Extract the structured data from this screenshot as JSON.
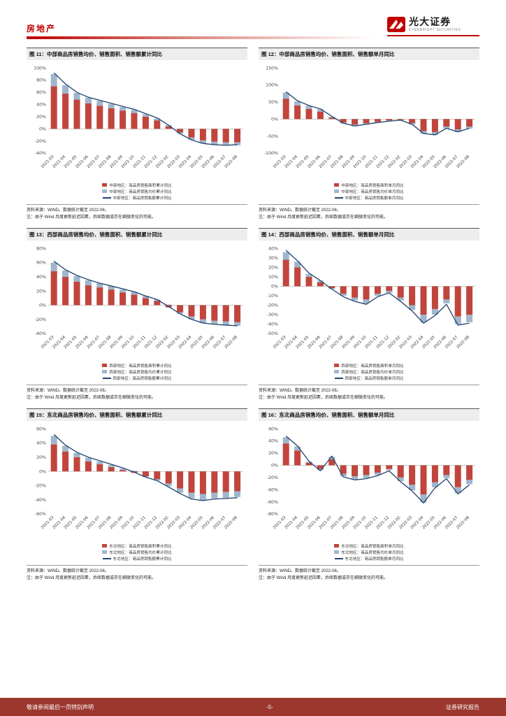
{
  "header": {
    "section_label": "房地产",
    "logo": {
      "name": "光大证券",
      "subtitle": "EVERBRIGHT SECURITIES"
    }
  },
  "footer": {
    "left": "敬请参阅最后一页特别声明",
    "page": "-5-",
    "right": "证券研究报告"
  },
  "colors": {
    "accent": "#C00000",
    "bar_area": "#C0453C",
    "bar_price": "#9FB6CD",
    "line_amount": "#25456E",
    "footer_bg": "#9C372E"
  },
  "charts": [
    {
      "title": "图 11：中部商品房销售均价、销售面积、销售额累计同比",
      "legend": [
        "中部地区：商品房销售面积累计同比",
        "中部地区：商品房销售均价累计同比",
        "中部地区：商品房销售额累计同比"
      ],
      "source": "资料来源：WIND。数据统计截至 2022-08。",
      "note": "注：由于 Wind 月度更新延迟因素，后续数据或存在细微变化的可能。",
      "chart_data": {
        "type": "bar",
        "categories": [
          "2021-03",
          "2021-04",
          "2021-05",
          "2021-06",
          "2021-07",
          "2021-08",
          "2021-09",
          "2021-10",
          "2021-11",
          "2021-12",
          "2022-02",
          "2022-03",
          "2022-04",
          "2022-05",
          "2022-06",
          "2022-07",
          "2022-08"
        ],
        "series": [
          {
            "name": "中部地区：商品房销售面积累计同比",
            "type": "bar",
            "values": [
              70,
              58,
              48,
              42,
              38,
              34,
              30,
              26,
              20,
              14,
              4,
              -6,
              -14,
              -19,
              -21,
              -22,
              -22
            ]
          },
          {
            "name": "中部地区：商品房销售均价累计同比",
            "type": "bar",
            "values": [
              20,
              14,
              11,
              9,
              8,
              7,
              6,
              5,
              4,
              3,
              2,
              -2,
              -4,
              -5,
              -5,
              -5,
              -5
            ]
          },
          {
            "name": "中部地区：商品房销售额累计同比",
            "type": "line",
            "values": [
              92,
              74,
              60,
              52,
              47,
              42,
              37,
              32,
              25,
              18,
              6,
              -8,
              -18,
              -24,
              -26,
              -27,
              -26
            ]
          }
        ],
        "ylim": [
          -40,
          100
        ],
        "yticks": [
          100,
          80,
          60,
          40,
          20,
          0,
          -20,
          -40
        ],
        "y_format": "percent"
      }
    },
    {
      "title": "图 12：中部商品房销售均价、销售面积、销售额单月同比",
      "legend": [
        "中部地区：商品房销售面积单月同比",
        "中部地区：商品房销售均价单月同比",
        "中部地区：商品房销售额单月同比"
      ],
      "source": "资料来源：WIND。数据统计截至 2022-08。",
      "note": "注：由于 Wind 月度更新延迟因素，后续数据或存在细微变化的可能。",
      "chart_data": {
        "type": "bar",
        "categories": [
          "2021-03",
          "2021-04",
          "2021-05",
          "2021-06",
          "2021-07",
          "2021-08",
          "2021-09",
          "2021-10",
          "2021-11",
          "2021-12",
          "2022-02",
          "2022-03",
          "2022-04",
          "2022-05",
          "2022-06",
          "2022-07",
          "2022-08"
        ],
        "series": [
          {
            "name": "中部地区：商品房销售面积单月同比",
            "type": "bar",
            "values": [
              60,
              40,
              30,
              22,
              4,
              -10,
              -16,
              -12,
              -8,
              -4,
              -2,
              -12,
              -35,
              -38,
              -22,
              -30,
              -22
            ]
          },
          {
            "name": "中部地区：商品房销售均价单月同比",
            "type": "bar",
            "values": [
              18,
              12,
              9,
              7,
              3,
              -3,
              -5,
              -4,
              -3,
              -2,
              -1,
              -4,
              -8,
              -9,
              -6,
              -8,
              -6
            ]
          },
          {
            "name": "中部地区：商品房销售额单月同比",
            "type": "line",
            "values": [
              80,
              54,
              40,
              30,
              8,
              -12,
              -20,
              -15,
              -10,
              -6,
              -3,
              -15,
              -42,
              -46,
              -27,
              -37,
              -27
            ]
          }
        ],
        "ylim": [
          -100,
          150
        ],
        "yticks": [
          150,
          100,
          50,
          0,
          -50,
          -100
        ],
        "y_format": "percent"
      }
    },
    {
      "title": "图 13：西部商品房销售均价、销售面积、销售额累计同比",
      "legend": [
        "西部地区：商品房销售面积累计同比",
        "西部地区：商品房销售均价累计同比",
        "西部地区：商品房销售额累计同比"
      ],
      "source": "资料来源：WIND。数据统计截至 2022-08。",
      "note": "注：由于 Wind 月度更新延迟因素，后续数据或存在细微变化的可能。",
      "chart_data": {
        "type": "bar",
        "categories": [
          "2021-03",
          "2021-04",
          "2021-05",
          "2021-06",
          "2021-07",
          "2021-08",
          "2021-09",
          "2021-10",
          "2021-11",
          "2021-12",
          "2022-02",
          "2022-03",
          "2022-04",
          "2022-05",
          "2022-06",
          "2022-07",
          "2022-08"
        ],
        "series": [
          {
            "name": "西部地区：商品房销售面积累计同比",
            "type": "bar",
            "values": [
              48,
              40,
              33,
              28,
              25,
              22,
              18,
              15,
              10,
              6,
              -3,
              -10,
              -16,
              -20,
              -22,
              -23,
              -24
            ]
          },
          {
            "name": "西部地区：商品房销售均价累计同比",
            "type": "bar",
            "values": [
              12,
              9,
              8,
              7,
              6,
              5,
              4,
              4,
              3,
              2,
              1,
              -2,
              -4,
              -5,
              -5,
              -5,
              -5
            ]
          },
          {
            "name": "西部地区：商品房销售额累计同比",
            "type": "line",
            "values": [
              62,
              50,
              42,
              36,
              31,
              27,
              23,
              19,
              13,
              8,
              -2,
              -12,
              -20,
              -25,
              -27,
              -28,
              -29
            ]
          }
        ],
        "ylim": [
          -40,
          80
        ],
        "yticks": [
          80,
          60,
          40,
          20,
          0,
          -20,
          -40
        ],
        "y_format": "percent"
      }
    },
    {
      "title": "图 14：西部商品房销售均价、销售面积、销售额单月同比",
      "legend": [
        "西部地区：商品房销售面积单月同比",
        "西部地区：商品房销售均价单月同比",
        "西部地区：商品房销售额单月同比"
      ],
      "source": "资料来源：WIND。数据统计截至 2022-08。",
      "note": "注：由于 Wind 月度更新延迟因素，后续数据或存在细微变化的可能。",
      "chart_data": {
        "type": "bar",
        "categories": [
          "2021-03",
          "2021-04",
          "2021-05",
          "2021-06",
          "2021-07",
          "2021-08",
          "2021-09",
          "2021-10",
          "2021-11",
          "2021-12",
          "2022-02",
          "2022-03",
          "2022-04",
          "2022-05",
          "2022-06",
          "2022-07",
          "2022-08"
        ],
        "series": [
          {
            "name": "西部地区：商品房销售面积单月同比",
            "type": "bar",
            "values": [
              28,
              20,
              10,
              4,
              -2,
              -8,
              -12,
              -14,
              -8,
              -5,
              -12,
              -20,
              -30,
              -24,
              -14,
              -32,
              -30
            ]
          },
          {
            "name": "西部地区：商品房销售均价单月同比",
            "type": "bar",
            "values": [
              8,
              6,
              3,
              2,
              -1,
              -2,
              -3,
              -4,
              -2,
              -2,
              -3,
              -5,
              -8,
              -6,
              -4,
              -8,
              -8
            ]
          },
          {
            "name": "西部地区：商品房销售额单月同比",
            "type": "line",
            "values": [
              38,
              27,
              14,
              6,
              -3,
              -11,
              -16,
              -19,
              -11,
              -7,
              -16,
              -26,
              -39,
              -31,
              -19,
              -41,
              -39
            ]
          }
        ],
        "ylim": [
          -50,
          40
        ],
        "yticks": [
          40,
          30,
          20,
          10,
          0,
          -10,
          -20,
          -30,
          -40,
          -50
        ],
        "y_format": "percent"
      }
    },
    {
      "title": "图 15：东北商品房销售均价、销售面积、销售额累计同比",
      "legend": [
        "东北地区：商品房销售面积累计同比",
        "东北地区：商品房销售均价累计同比",
        "东北地区：商品房销售额累计同比"
      ],
      "source": "资料来源：WIND。数据统计截至 2022-08。",
      "note": "注：由于 Wind 月度更新延迟因素，后续数据或存在细微变化的可能。",
      "chart_data": {
        "type": "bar",
        "categories": [
          "2021-03",
          "2021-04",
          "2021-05",
          "2021-06",
          "2021-07",
          "2021-08",
          "2021-09",
          "2021-10",
          "2021-11",
          "2021-12",
          "2022-02",
          "2022-03",
          "2022-04",
          "2022-05",
          "2022-06",
          "2022-07",
          "2022-08"
        ],
        "series": [
          {
            "name": "东北地区：商品房销售面积累计同比",
            "type": "bar",
            "values": [
              38,
              28,
              20,
              14,
              10,
              6,
              2,
              -2,
              -7,
              -11,
              -17,
              -24,
              -30,
              -32,
              -30,
              -29,
              -28
            ]
          },
          {
            "name": "东北地区：商品房销售均价累计同比",
            "type": "bar",
            "values": [
              12,
              8,
              6,
              5,
              4,
              3,
              2,
              1,
              -1,
              -2,
              -4,
              -6,
              -8,
              -8,
              -8,
              -8,
              -8
            ]
          },
          {
            "name": "东北地区：商品房销售额累计同比",
            "type": "line",
            "values": [
              52,
              37,
              27,
              20,
              15,
              10,
              5,
              -1,
              -8,
              -13,
              -22,
              -31,
              -39,
              -41,
              -39,
              -38,
              -37
            ]
          }
        ],
        "ylim": [
          -60,
          60
        ],
        "yticks": [
          60,
          40,
          20,
          0,
          -20,
          -40,
          -60
        ],
        "y_format": "percent"
      }
    },
    {
      "title": "图 16：东北商品房销售均价、销售面积、销售额单月同比",
      "legend": [
        "东北地区：商品房销售面积单月同比",
        "东北地区：商品房销售均价单月同比",
        "东北地区：商品房销售额单月同比"
      ],
      "source": "资料来源：WIND。数据统计截至 2022-08。",
      "note": "注：由于 Wind 月度更新延迟因素，后续数据或存在细微变化的可能。",
      "chart_data": {
        "type": "bar",
        "categories": [
          "2021-03",
          "2021-04",
          "2021-05",
          "2021-06",
          "2021-07",
          "2021-08",
          "2021-09",
          "2021-10",
          "2021-11",
          "2021-12",
          "2022-02",
          "2022-03",
          "2022-04",
          "2022-05",
          "2022-06",
          "2022-07",
          "2022-08"
        ],
        "series": [
          {
            "name": "东北地区：商品房销售面积单月同比",
            "type": "bar",
            "values": [
              36,
              24,
              4,
              -6,
              10,
              -14,
              -18,
              -16,
              -12,
              -6,
              -20,
              -32,
              -48,
              -28,
              -16,
              -36,
              -24
            ]
          },
          {
            "name": "东北地区：商品房销售均价单月同比",
            "type": "bar",
            "values": [
              10,
              7,
              2,
              -2,
              4,
              -4,
              -5,
              -5,
              -4,
              -2,
              -6,
              -9,
              -13,
              -8,
              -5,
              -10,
              -7
            ]
          },
          {
            "name": "东北地区：商品房销售额单月同比",
            "type": "line",
            "values": [
              48,
              32,
              7,
              -9,
              15,
              -19,
              -24,
              -22,
              -17,
              -9,
              -27,
              -42,
              -62,
              -37,
              -22,
              -47,
              -32
            ]
          }
        ],
        "ylim": [
          -80,
          60
        ],
        "yticks": [
          60,
          40,
          20,
          0,
          -20,
          -40,
          -60,
          -80
        ],
        "y_format": "percent"
      }
    }
  ]
}
